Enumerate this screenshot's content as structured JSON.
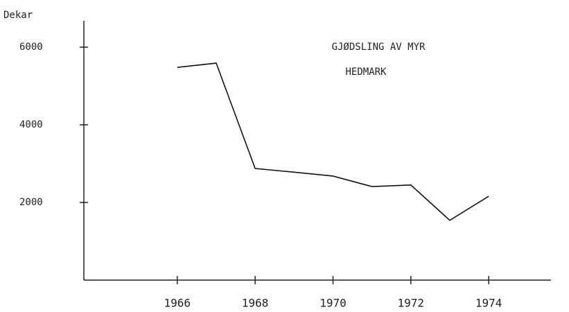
{
  "chart_data": {
    "type": "line",
    "title": "GJØDSLING AV MYR",
    "subtitle": "HEDMARK",
    "y_label": "Dekar",
    "x": [
      1966,
      1967,
      1968,
      1969,
      1970,
      1971,
      1972,
      1973,
      1974
    ],
    "series": [
      {
        "name": "Dekar",
        "color": "#111111",
        "values": [
          5480,
          5590,
          2875,
          2780,
          2680,
          2410,
          2450,
          1540,
          2160
        ]
      }
    ],
    "xlim": [
      1963.6,
      1975.6
    ],
    "xticks": [
      1966,
      1968,
      1970,
      1972,
      1974
    ],
    "ylim": [
      0,
      6680
    ],
    "yticks": [
      2000,
      4000,
      6000
    ]
  }
}
